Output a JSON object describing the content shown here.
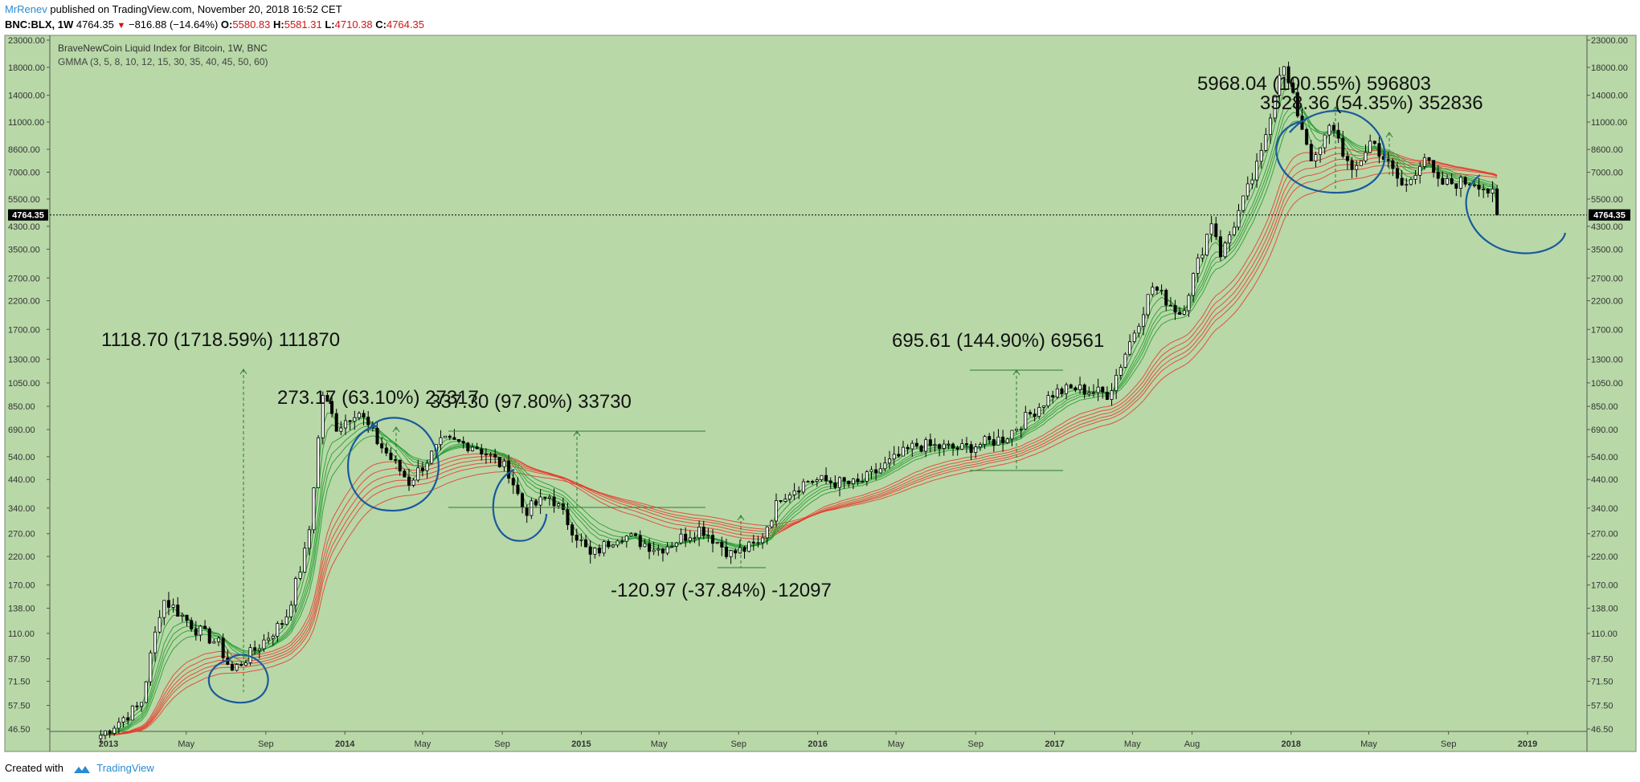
{
  "header": {
    "author": "MrRenev",
    "published_text": "published on TradingView.com, November 20, 2018 16:52 CET",
    "symbol": "BNC:BLX, 1W",
    "last": "4764.35",
    "change": "−816.88 (−14.64%)",
    "open_label": "O:",
    "open": "5580.83",
    "high_label": "H:",
    "high": "5581.31",
    "low_label": "L:",
    "low": "4710.38",
    "close_label": "C:",
    "close": "4764.35"
  },
  "footer": {
    "created_with": "Created with",
    "brand": "TradingView"
  },
  "colors": {
    "background": "#b8d8a8",
    "up_candle": "#ffffff",
    "down_candle": "#000000",
    "gmma_short": "#1f9a2a",
    "gmma_long": "#e8392c",
    "annotation_circle": "#1a5a9c",
    "measure_line": "#2d7d2d"
  },
  "chart_data": {
    "type": "candlestick",
    "title": "BraveNewCoin Liquid Index for Bitcoin, 1W, BNC",
    "subtitle": "GMMA (3, 5, 8, 10, 12, 15, 30, 35, 40, 45, 50, 60)",
    "y_scale": "log",
    "ylim": [
      46.5,
      23000
    ],
    "y_ticks": [
      "23000.00",
      "18000.00",
      "14000.00",
      "11000.00",
      "8600.00",
      "7000.00",
      "5500.00",
      "4764.35",
      "4300.00",
      "3500.00",
      "2700.00",
      "2200.00",
      "1700.00",
      "1300.00",
      "1050.00",
      "850.00",
      "690.00",
      "540.00",
      "440.00",
      "340.00",
      "270.00",
      "220.00",
      "170.00",
      "138.00",
      "110.00",
      "87.50",
      "71.50",
      "57.50",
      "46.50"
    ],
    "x_ticks": [
      "2013",
      "May",
      "Sep",
      "2014",
      "May",
      "Sep",
      "2015",
      "May",
      "Sep",
      "2016",
      "May",
      "Sep",
      "2017",
      "May",
      "Aug",
      "2018",
      "May",
      "Sep",
      "2019"
    ],
    "current_price": 4764.35,
    "current_price_label": "4764.35",
    "gmma_periods_short": [
      3,
      5,
      8,
      10,
      12,
      15
    ],
    "gmma_periods_long": [
      30,
      35,
      40,
      45,
      50,
      60
    ],
    "price_path": [
      {
        "date": "2012-12-20",
        "price": 44
      },
      {
        "date": "2013-02-20",
        "price": 58
      },
      {
        "date": "2013-03-25",
        "price": 150
      },
      {
        "date": "2013-04-10",
        "price": 140
      },
      {
        "date": "2013-05-15",
        "price": 115
      },
      {
        "date": "2013-06-20",
        "price": 100
      },
      {
        "date": "2013-07-10",
        "price": 78
      },
      {
        "date": "2013-08-15",
        "price": 95
      },
      {
        "date": "2013-10-01",
        "price": 125
      },
      {
        "date": "2013-11-05",
        "price": 250
      },
      {
        "date": "2013-11-28",
        "price": 950
      },
      {
        "date": "2013-12-20",
        "price": 700
      },
      {
        "date": "2014-01-20",
        "price": 830
      },
      {
        "date": "2014-02-20",
        "price": 620
      },
      {
        "date": "2014-04-10",
        "price": 430
      },
      {
        "date": "2014-06-01",
        "price": 620
      },
      {
        "date": "2014-07-20",
        "price": 600
      },
      {
        "date": "2014-09-10",
        "price": 480
      },
      {
        "date": "2014-10-05",
        "price": 330
      },
      {
        "date": "2014-11-15",
        "price": 380
      },
      {
        "date": "2015-01-15",
        "price": 220
      },
      {
        "date": "2015-03-01",
        "price": 270
      },
      {
        "date": "2015-05-01",
        "price": 235
      },
      {
        "date": "2015-07-05",
        "price": 285
      },
      {
        "date": "2015-08-20",
        "price": 225
      },
      {
        "date": "2015-10-01",
        "price": 245
      },
      {
        "date": "2015-11-05",
        "price": 380
      },
      {
        "date": "2015-12-20",
        "price": 440
      },
      {
        "date": "2016-03-01",
        "price": 420
      },
      {
        "date": "2016-06-01",
        "price": 600
      },
      {
        "date": "2016-08-10",
        "price": 580
      },
      {
        "date": "2016-10-15",
        "price": 640
      },
      {
        "date": "2016-12-30",
        "price": 960
      },
      {
        "date": "2017-02-01",
        "price": 1000
      },
      {
        "date": "2017-03-25",
        "price": 950
      },
      {
        "date": "2017-06-01",
        "price": 2500
      },
      {
        "date": "2017-07-15",
        "price": 1950
      },
      {
        "date": "2017-09-01",
        "price": 4600
      },
      {
        "date": "2017-09-15",
        "price": 3300
      },
      {
        "date": "2017-11-15",
        "price": 8000
      },
      {
        "date": "2017-12-17",
        "price": 19000
      },
      {
        "date": "2018-02-05",
        "price": 7500
      },
      {
        "date": "2018-03-05",
        "price": 11000
      },
      {
        "date": "2018-04-05",
        "price": 6800
      },
      {
        "date": "2018-05-05",
        "price": 9400
      },
      {
        "date": "2018-06-25",
        "price": 6000
      },
      {
        "date": "2018-07-25",
        "price": 8200
      },
      {
        "date": "2018-08-15",
        "price": 6300
      },
      {
        "date": "2018-10-15",
        "price": 6450
      },
      {
        "date": "2018-11-12",
        "price": 5580
      },
      {
        "date": "2018-11-20",
        "price": 4764
      }
    ],
    "annotations": [
      {
        "text": "1118.70 (1718.59%) 111870"
      },
      {
        "text": "273.17 (63.10%) 27317"
      },
      {
        "text": "337.30 (97.80%) 33730"
      },
      {
        "text": "-120.97 (-37.84%) -12097"
      },
      {
        "text": "695.61 (144.90%) 69561"
      },
      {
        "text": "5968.04 (100.55%) 596803"
      },
      {
        "text": "3528.36 (54.35%) 352836"
      }
    ]
  }
}
